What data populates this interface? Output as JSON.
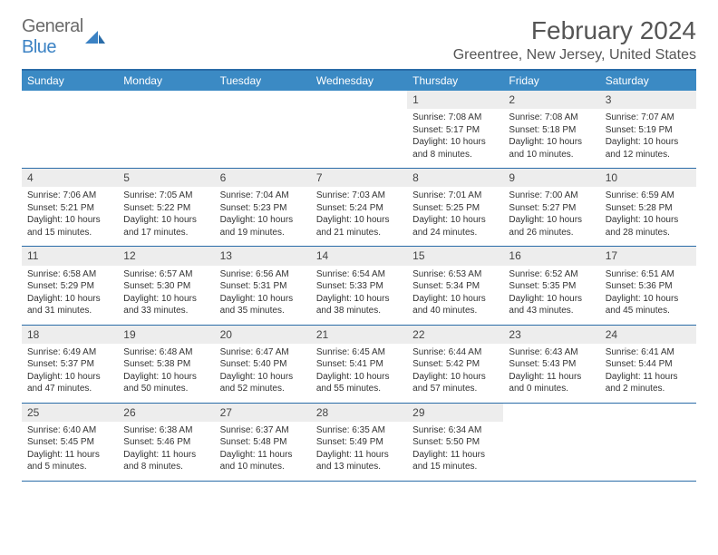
{
  "logo": {
    "name": "General",
    "accent": "Blue"
  },
  "title": "February 2024",
  "location": "Greentree, New Jersey, United States",
  "colors": {
    "header_bar": "#3b8ac4",
    "border": "#2a6ca8",
    "daynum_bg": "#ededed",
    "text": "#333333",
    "title_text": "#555555",
    "logo_gray": "#6b6b6b",
    "logo_blue": "#3b82c4"
  },
  "weekdays": [
    "Sunday",
    "Monday",
    "Tuesday",
    "Wednesday",
    "Thursday",
    "Friday",
    "Saturday"
  ],
  "weeks": [
    [
      {
        "n": "",
        "sr": "",
        "ss": "",
        "dl": ""
      },
      {
        "n": "",
        "sr": "",
        "ss": "",
        "dl": ""
      },
      {
        "n": "",
        "sr": "",
        "ss": "",
        "dl": ""
      },
      {
        "n": "",
        "sr": "",
        "ss": "",
        "dl": ""
      },
      {
        "n": "1",
        "sr": "Sunrise: 7:08 AM",
        "ss": "Sunset: 5:17 PM",
        "dl": "Daylight: 10 hours and 8 minutes."
      },
      {
        "n": "2",
        "sr": "Sunrise: 7:08 AM",
        "ss": "Sunset: 5:18 PM",
        "dl": "Daylight: 10 hours and 10 minutes."
      },
      {
        "n": "3",
        "sr": "Sunrise: 7:07 AM",
        "ss": "Sunset: 5:19 PM",
        "dl": "Daylight: 10 hours and 12 minutes."
      }
    ],
    [
      {
        "n": "4",
        "sr": "Sunrise: 7:06 AM",
        "ss": "Sunset: 5:21 PM",
        "dl": "Daylight: 10 hours and 15 minutes."
      },
      {
        "n": "5",
        "sr": "Sunrise: 7:05 AM",
        "ss": "Sunset: 5:22 PM",
        "dl": "Daylight: 10 hours and 17 minutes."
      },
      {
        "n": "6",
        "sr": "Sunrise: 7:04 AM",
        "ss": "Sunset: 5:23 PM",
        "dl": "Daylight: 10 hours and 19 minutes."
      },
      {
        "n": "7",
        "sr": "Sunrise: 7:03 AM",
        "ss": "Sunset: 5:24 PM",
        "dl": "Daylight: 10 hours and 21 minutes."
      },
      {
        "n": "8",
        "sr": "Sunrise: 7:01 AM",
        "ss": "Sunset: 5:25 PM",
        "dl": "Daylight: 10 hours and 24 minutes."
      },
      {
        "n": "9",
        "sr": "Sunrise: 7:00 AM",
        "ss": "Sunset: 5:27 PM",
        "dl": "Daylight: 10 hours and 26 minutes."
      },
      {
        "n": "10",
        "sr": "Sunrise: 6:59 AM",
        "ss": "Sunset: 5:28 PM",
        "dl": "Daylight: 10 hours and 28 minutes."
      }
    ],
    [
      {
        "n": "11",
        "sr": "Sunrise: 6:58 AM",
        "ss": "Sunset: 5:29 PM",
        "dl": "Daylight: 10 hours and 31 minutes."
      },
      {
        "n": "12",
        "sr": "Sunrise: 6:57 AM",
        "ss": "Sunset: 5:30 PM",
        "dl": "Daylight: 10 hours and 33 minutes."
      },
      {
        "n": "13",
        "sr": "Sunrise: 6:56 AM",
        "ss": "Sunset: 5:31 PM",
        "dl": "Daylight: 10 hours and 35 minutes."
      },
      {
        "n": "14",
        "sr": "Sunrise: 6:54 AM",
        "ss": "Sunset: 5:33 PM",
        "dl": "Daylight: 10 hours and 38 minutes."
      },
      {
        "n": "15",
        "sr": "Sunrise: 6:53 AM",
        "ss": "Sunset: 5:34 PM",
        "dl": "Daylight: 10 hours and 40 minutes."
      },
      {
        "n": "16",
        "sr": "Sunrise: 6:52 AM",
        "ss": "Sunset: 5:35 PM",
        "dl": "Daylight: 10 hours and 43 minutes."
      },
      {
        "n": "17",
        "sr": "Sunrise: 6:51 AM",
        "ss": "Sunset: 5:36 PM",
        "dl": "Daylight: 10 hours and 45 minutes."
      }
    ],
    [
      {
        "n": "18",
        "sr": "Sunrise: 6:49 AM",
        "ss": "Sunset: 5:37 PM",
        "dl": "Daylight: 10 hours and 47 minutes."
      },
      {
        "n": "19",
        "sr": "Sunrise: 6:48 AM",
        "ss": "Sunset: 5:38 PM",
        "dl": "Daylight: 10 hours and 50 minutes."
      },
      {
        "n": "20",
        "sr": "Sunrise: 6:47 AM",
        "ss": "Sunset: 5:40 PM",
        "dl": "Daylight: 10 hours and 52 minutes."
      },
      {
        "n": "21",
        "sr": "Sunrise: 6:45 AM",
        "ss": "Sunset: 5:41 PM",
        "dl": "Daylight: 10 hours and 55 minutes."
      },
      {
        "n": "22",
        "sr": "Sunrise: 6:44 AM",
        "ss": "Sunset: 5:42 PM",
        "dl": "Daylight: 10 hours and 57 minutes."
      },
      {
        "n": "23",
        "sr": "Sunrise: 6:43 AM",
        "ss": "Sunset: 5:43 PM",
        "dl": "Daylight: 11 hours and 0 minutes."
      },
      {
        "n": "24",
        "sr": "Sunrise: 6:41 AM",
        "ss": "Sunset: 5:44 PM",
        "dl": "Daylight: 11 hours and 2 minutes."
      }
    ],
    [
      {
        "n": "25",
        "sr": "Sunrise: 6:40 AM",
        "ss": "Sunset: 5:45 PM",
        "dl": "Daylight: 11 hours and 5 minutes."
      },
      {
        "n": "26",
        "sr": "Sunrise: 6:38 AM",
        "ss": "Sunset: 5:46 PM",
        "dl": "Daylight: 11 hours and 8 minutes."
      },
      {
        "n": "27",
        "sr": "Sunrise: 6:37 AM",
        "ss": "Sunset: 5:48 PM",
        "dl": "Daylight: 11 hours and 10 minutes."
      },
      {
        "n": "28",
        "sr": "Sunrise: 6:35 AM",
        "ss": "Sunset: 5:49 PM",
        "dl": "Daylight: 11 hours and 13 minutes."
      },
      {
        "n": "29",
        "sr": "Sunrise: 6:34 AM",
        "ss": "Sunset: 5:50 PM",
        "dl": "Daylight: 11 hours and 15 minutes."
      },
      {
        "n": "",
        "sr": "",
        "ss": "",
        "dl": ""
      },
      {
        "n": "",
        "sr": "",
        "ss": "",
        "dl": ""
      }
    ]
  ]
}
